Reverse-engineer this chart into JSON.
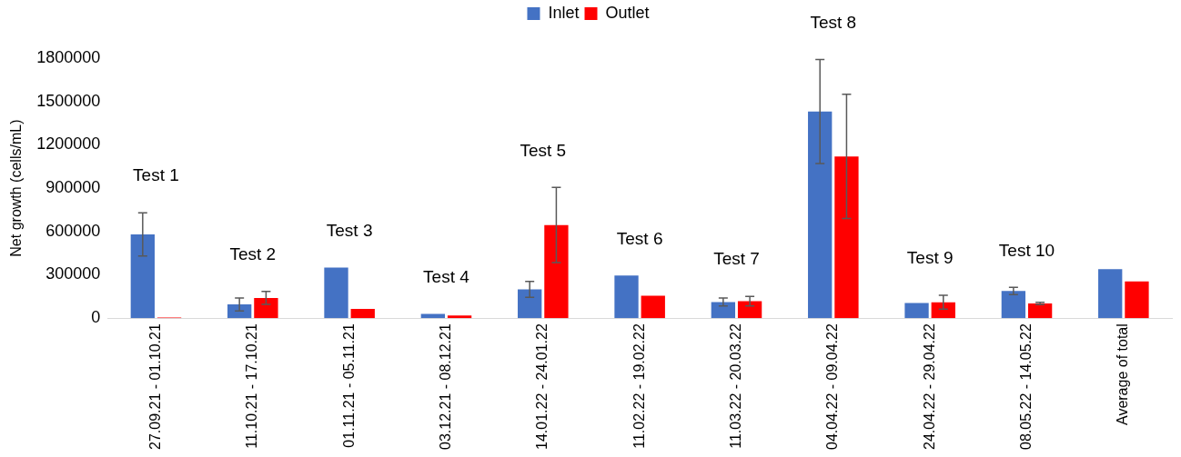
{
  "chart_data": {
    "type": "bar",
    "ylabel": "Net growth (cells/mL)",
    "categories": [
      "27.09.21 - 01.10.21",
      "11.10.21 - 17.10.21",
      "01.11.21 - 05.11.21",
      "03.12.21 - 08.12.21",
      "14.01.22 - 24.01.22",
      "11.02.22 - 19.02.22",
      "11.03.22 - 20.03.22",
      "04.04.22 - 09.04.22",
      "24.04.22 - 29.04.22",
      "08.05.22 - 14.05.22",
      "Average of total"
    ],
    "series": [
      {
        "name": "Inlet",
        "color": "#4472c4",
        "values": [
          580000,
          95000,
          350000,
          30000,
          200000,
          295000,
          112000,
          1430000,
          105000,
          188000,
          340000
        ],
        "errors": [
          150000,
          45000,
          null,
          null,
          55000,
          null,
          27000,
          360000,
          null,
          25000,
          null
        ]
      },
      {
        "name": "Outlet",
        "color": "#ff0000",
        "values": [
          5000,
          140000,
          65000,
          18000,
          645000,
          155000,
          118000,
          1120000,
          110000,
          102000,
          255000
        ],
        "errors": [
          null,
          45000,
          null,
          null,
          260000,
          null,
          33000,
          430000,
          48000,
          8000,
          null
        ]
      }
    ],
    "ylim": [
      0,
      1800000
    ],
    "yticks": [
      0,
      300000,
      600000,
      900000,
      1200000,
      1500000,
      1800000
    ],
    "grid": false,
    "legend": "top",
    "annotations": [
      "Test 1",
      "Test 2",
      "Test 3",
      "Test 4",
      "Test 5",
      "Test 6",
      "Test 7",
      "Test 8",
      "Test 9",
      "Test 10"
    ]
  }
}
